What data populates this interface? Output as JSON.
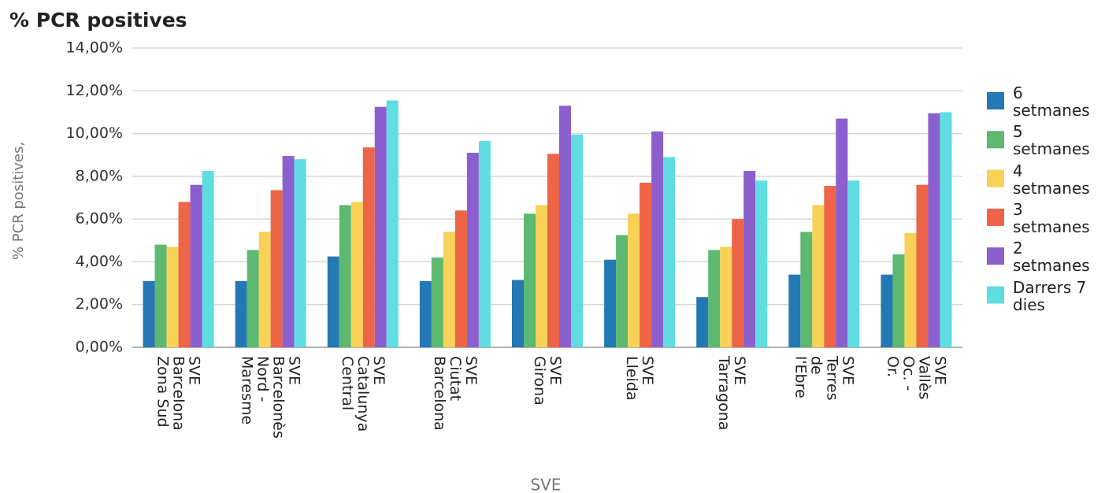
{
  "chart_data": {
    "type": "bar",
    "title": "% PCR positives",
    "y_label": "% PCR positives,",
    "x_label": "SVE",
    "categories": [
      "SVE\nBarcelona\nZona Sud",
      "SVE\nBarcelonès\nNord -\nMaresme",
      "SVE\nCatalunya\nCentral",
      "SVE\nCiutat\nBarcelona",
      "SVE\nGirona",
      "SVE\nLleida",
      "SVE\nTarragona",
      "SVE\nTerres\nde\nl'Ebre",
      "SVE\nVallès\nOc. -\nOr."
    ],
    "series": [
      {
        "name": "6\nsetmanes",
        "color": "#2478b4",
        "values": [
          3.1,
          3.1,
          4.25,
          3.1,
          3.15,
          4.1,
          2.35,
          3.4,
          3.4
        ]
      },
      {
        "name": "5\nsetmanes",
        "color": "#5db96f",
        "values": [
          4.8,
          4.55,
          6.65,
          4.2,
          6.25,
          5.25,
          4.55,
          5.4,
          4.35
        ]
      },
      {
        "name": "4\nsetmanes",
        "color": "#f8d256",
        "values": [
          4.7,
          5.4,
          6.8,
          5.4,
          6.65,
          6.25,
          4.7,
          6.65,
          5.35
        ]
      },
      {
        "name": "3\nsetmanes",
        "color": "#ee6446",
        "values": [
          6.8,
          7.35,
          9.35,
          6.4,
          9.05,
          7.7,
          6.0,
          7.55,
          7.6
        ]
      },
      {
        "name": "2\nsetmanes",
        "color": "#8c5fcf",
        "values": [
          7.6,
          8.95,
          11.25,
          9.1,
          11.3,
          10.1,
          8.25,
          10.7,
          10.95
        ]
      },
      {
        "name": "Darrers 7\ndies",
        "color": "#5fdde1",
        "values": [
          8.25,
          8.8,
          11.55,
          9.65,
          9.95,
          8.9,
          7.8,
          7.8,
          11.0
        ]
      }
    ],
    "ylim": [
      0,
      14
    ],
    "yticks": [
      {
        "value": 0,
        "label": "0,00%"
      },
      {
        "value": 2,
        "label": "2,00%"
      },
      {
        "value": 4,
        "label": "4,00%"
      },
      {
        "value": 6,
        "label": "6,00%"
      },
      {
        "value": 8,
        "label": "8,00%"
      },
      {
        "value": 10,
        "label": "10,00%"
      },
      {
        "value": 12,
        "label": "12,00%"
      },
      {
        "value": 14,
        "label": "14,00%"
      }
    ],
    "grid": true,
    "legend": "right"
  }
}
